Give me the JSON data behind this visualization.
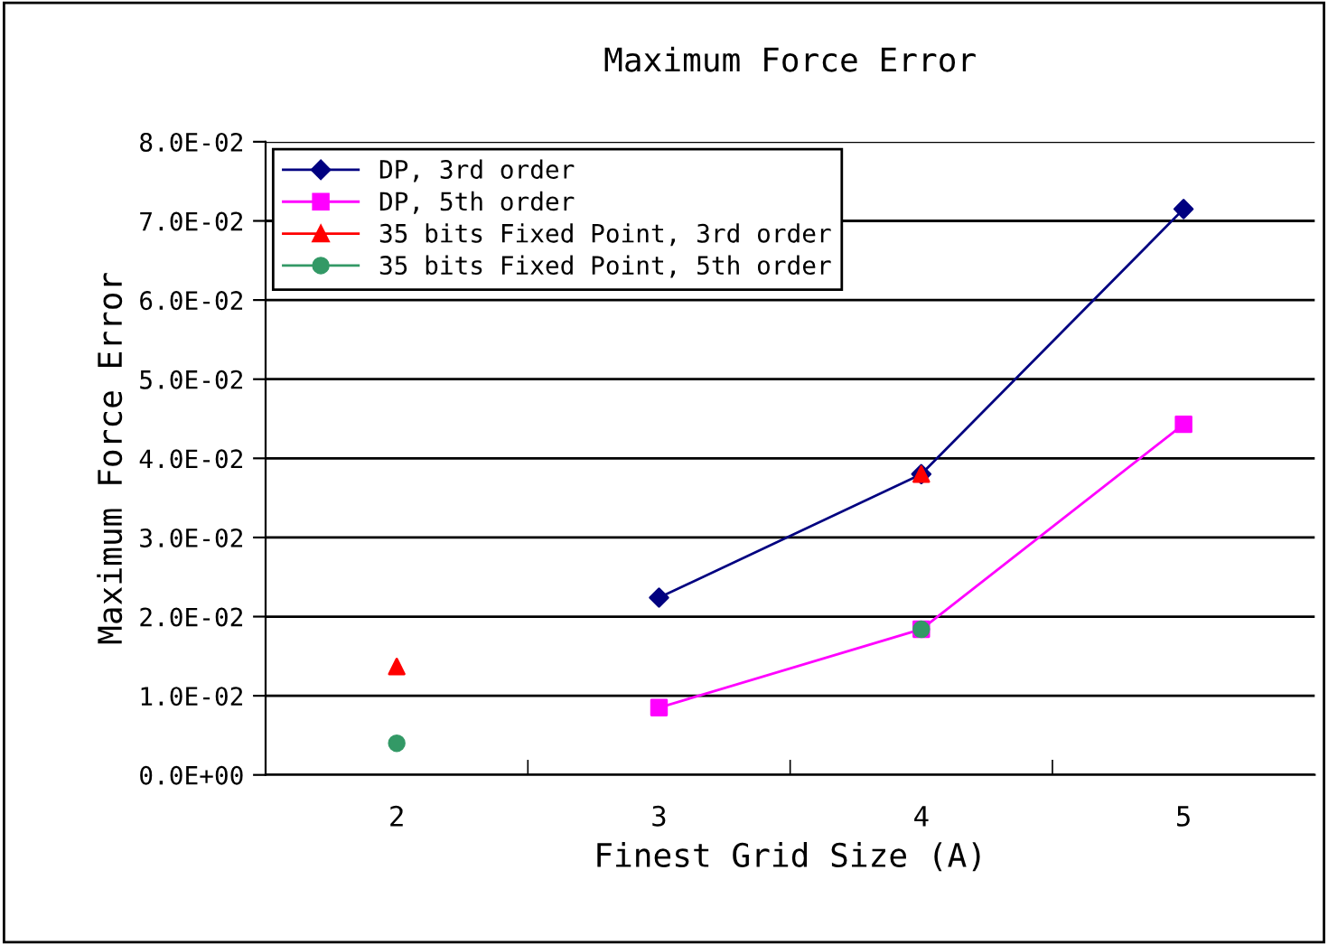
{
  "chart_data": {
    "type": "line",
    "title": "Maximum Force Error",
    "xlabel": "Finest Grid Size (A)",
    "ylabel": "Maximum Force Error",
    "categories": [
      "2",
      "3",
      "4",
      "5"
    ],
    "series": [
      {
        "name": "DP, 3rd order",
        "color": "#000080",
        "marker": "diamond",
        "values": [
          null,
          0.0224,
          0.038,
          0.0715
        ]
      },
      {
        "name": "DP, 5th order",
        "color": "#ff00ff",
        "marker": "square",
        "values": [
          null,
          0.0085,
          0.0184,
          0.0443
        ]
      },
      {
        "name": "35 bits Fixed Point, 3rd order",
        "type": "scatter",
        "color": "#ff0000",
        "marker": "triangle",
        "values": [
          0.0137,
          null,
          0.038,
          null
        ]
      },
      {
        "name": "35 bits Fixed Point, 5th order",
        "type": "scatter",
        "color": "#339966",
        "marker": "circle",
        "values": [
          0.004,
          null,
          0.0184,
          null
        ]
      }
    ],
    "ylim": [
      0,
      0.08
    ],
    "yticks": [
      {
        "value": 0,
        "label": "0.0E+00"
      },
      {
        "value": 0.01,
        "label": "1.0E-02"
      },
      {
        "value": 0.02,
        "label": "2.0E-02"
      },
      {
        "value": 0.03,
        "label": "3.0E-02"
      },
      {
        "value": 0.04,
        "label": "4.0E-02"
      },
      {
        "value": 0.05,
        "label": "5.0E-02"
      },
      {
        "value": 0.06,
        "label": "6.0E-02"
      },
      {
        "value": 0.07,
        "label": "7.0E-02"
      },
      {
        "value": 0.08,
        "label": "8.0E-02"
      }
    ],
    "grid": "y",
    "legend": "top left",
    "line_style": "solid"
  }
}
